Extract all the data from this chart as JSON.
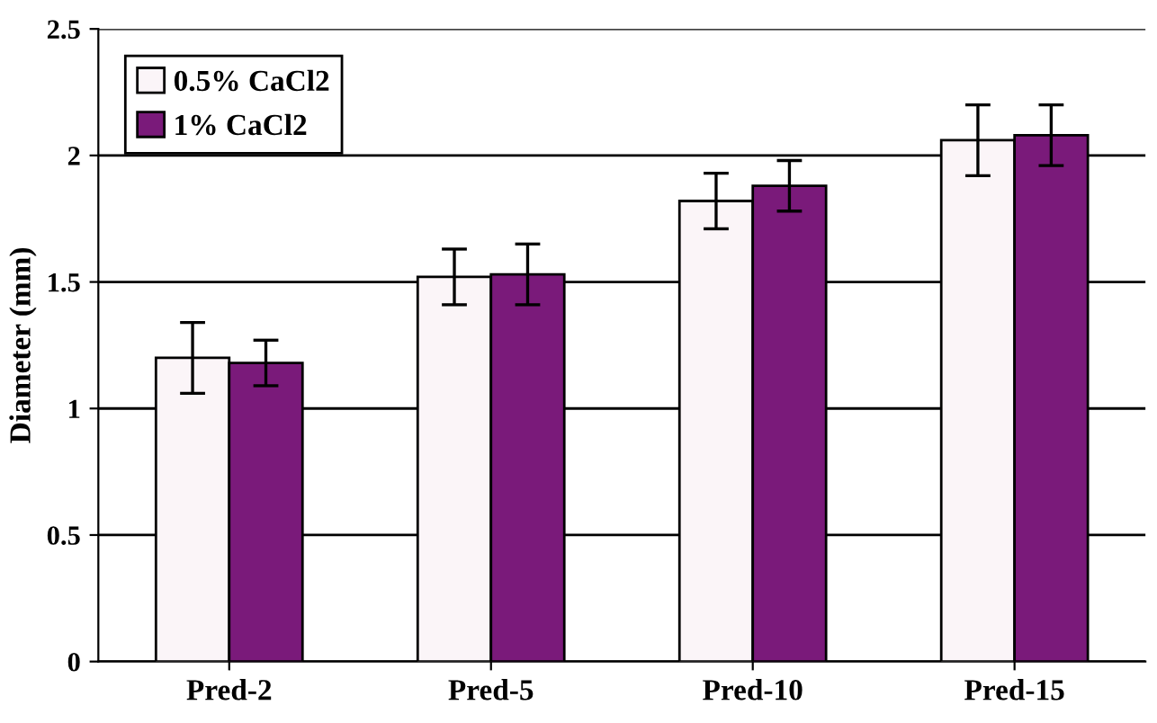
{
  "chart_data": {
    "type": "bar",
    "ylabel": "Diameter (mm)",
    "categories": [
      "Pred-2",
      "Pred-5",
      "Pred-10",
      "Pred-15"
    ],
    "series": [
      {
        "name": "0.5% CaCl2",
        "color": "#fbf5f8",
        "values": [
          1.2,
          1.52,
          1.82,
          2.06
        ],
        "errors": [
          0.14,
          0.11,
          0.11,
          0.14
        ]
      },
      {
        "name": "1% CaCl2",
        "color": "#7a1a7a",
        "values": [
          1.18,
          1.53,
          1.88,
          2.08
        ],
        "errors": [
          0.09,
          0.12,
          0.1,
          0.12
        ]
      }
    ],
    "ylim": [
      0,
      2.5
    ],
    "yticks": [
      0,
      0.5,
      1,
      1.5,
      2,
      2.5
    ],
    "grid": "y",
    "legend": "top left"
  }
}
